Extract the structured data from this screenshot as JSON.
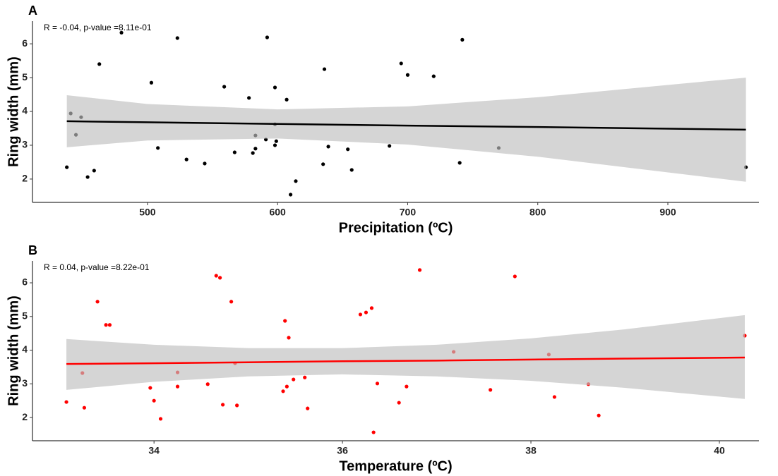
{
  "chart_data": [
    {
      "type": "scatter",
      "tag": "A",
      "annotation": "R = -0.04, p-value =8.11e-01",
      "x_label": "Precipitation (ºC)",
      "y_label": "Ring width (mm)",
      "color": "#000000",
      "band_color": "#bebebe",
      "x": [
        438,
        441,
        445,
        449,
        454,
        459,
        463,
        480,
        503,
        508,
        523,
        530,
        544,
        559,
        567,
        578,
        581,
        583,
        583,
        591,
        592,
        598,
        598,
        598,
        599,
        607,
        614,
        610,
        635,
        636,
        639,
        654,
        657,
        686,
        695,
        700,
        720,
        740,
        742,
        770,
        960
      ],
      "values": [
        2.35,
        3.94,
        3.31,
        3.83,
        2.06,
        2.25,
        5.4,
        6.33,
        4.85,
        2.92,
        6.17,
        2.58,
        2.46,
        4.73,
        2.79,
        4.4,
        2.77,
        3.29,
        2.9,
        3.17,
        6.19,
        4.71,
        3.62,
        3.0,
        3.12,
        4.35,
        1.94,
        1.54,
        2.44,
        5.25,
        2.96,
        2.88,
        2.27,
        2.98,
        5.42,
        5.08,
        5.04,
        2.48,
        6.12,
        2.92,
        2.35
      ],
      "fit": {
        "x": [
          438,
          500,
          600,
          700,
          800,
          960
        ],
        "values": [
          3.71,
          3.68,
          3.63,
          3.58,
          3.54,
          3.46
        ],
        "lower": [
          2.94,
          3.14,
          3.2,
          3.02,
          2.66,
          1.92
        ],
        "upper": [
          4.48,
          4.22,
          4.06,
          4.15,
          4.42,
          5.0
        ]
      },
      "xlim": [
        411.6,
        970
      ],
      "ylim": [
        1.31,
        6.67
      ],
      "xticks": [
        500,
        600,
        700,
        800,
        900
      ],
      "yticks": [
        2,
        3,
        4,
        5,
        6
      ]
    },
    {
      "type": "scatter",
      "tag": "B",
      "annotation": "R = 0.04, p-value =8.22e-01",
      "x_label": "Temperature (ºC)",
      "y_label": "Ring width (mm)",
      "color": "#ff0000",
      "band_color": "#bebebe",
      "x": [
        33.07,
        33.24,
        33.26,
        33.4,
        33.49,
        33.53,
        33.96,
        34.0,
        34.07,
        34.25,
        34.25,
        34.57,
        34.66,
        34.7,
        34.73,
        34.82,
        34.86,
        34.88,
        35.37,
        35.39,
        35.41,
        35.43,
        35.48,
        35.6,
        35.63,
        36.19,
        36.25,
        36.31,
        36.33,
        36.37,
        36.6,
        36.68,
        36.82,
        37.18,
        37.57,
        37.83,
        38.19,
        38.25,
        38.61,
        38.72,
        40.27
      ],
      "values": [
        2.46,
        3.32,
        2.29,
        5.44,
        4.75,
        4.75,
        2.88,
        2.5,
        1.96,
        3.34,
        2.92,
        2.99,
        6.21,
        6.15,
        2.38,
        5.44,
        3.61,
        2.36,
        2.78,
        4.87,
        2.92,
        4.37,
        3.13,
        3.19,
        2.27,
        5.06,
        5.12,
        5.25,
        1.56,
        3.01,
        2.44,
        2.92,
        6.38,
        3.95,
        2.82,
        6.19,
        3.87,
        2.61,
        2.99,
        2.06,
        4.43
      ],
      "fit": {
        "x": [
          33.07,
          34,
          35,
          36,
          37,
          38,
          39,
          40.27
        ],
        "values": [
          3.59,
          3.61,
          3.64,
          3.67,
          3.69,
          3.72,
          3.75,
          3.78
        ],
        "lower": [
          2.82,
          3.06,
          3.22,
          3.28,
          3.22,
          3.09,
          2.88,
          2.55
        ],
        "upper": [
          4.33,
          4.16,
          4.06,
          4.06,
          4.16,
          4.35,
          4.62,
          5.04
        ]
      },
      "xlim": [
        32.71,
        40.42
      ],
      "ylim": [
        1.31,
        6.65
      ],
      "xticks": [
        34,
        36,
        38,
        40
      ],
      "yticks": [
        2,
        3,
        4,
        5,
        6
      ]
    }
  ]
}
